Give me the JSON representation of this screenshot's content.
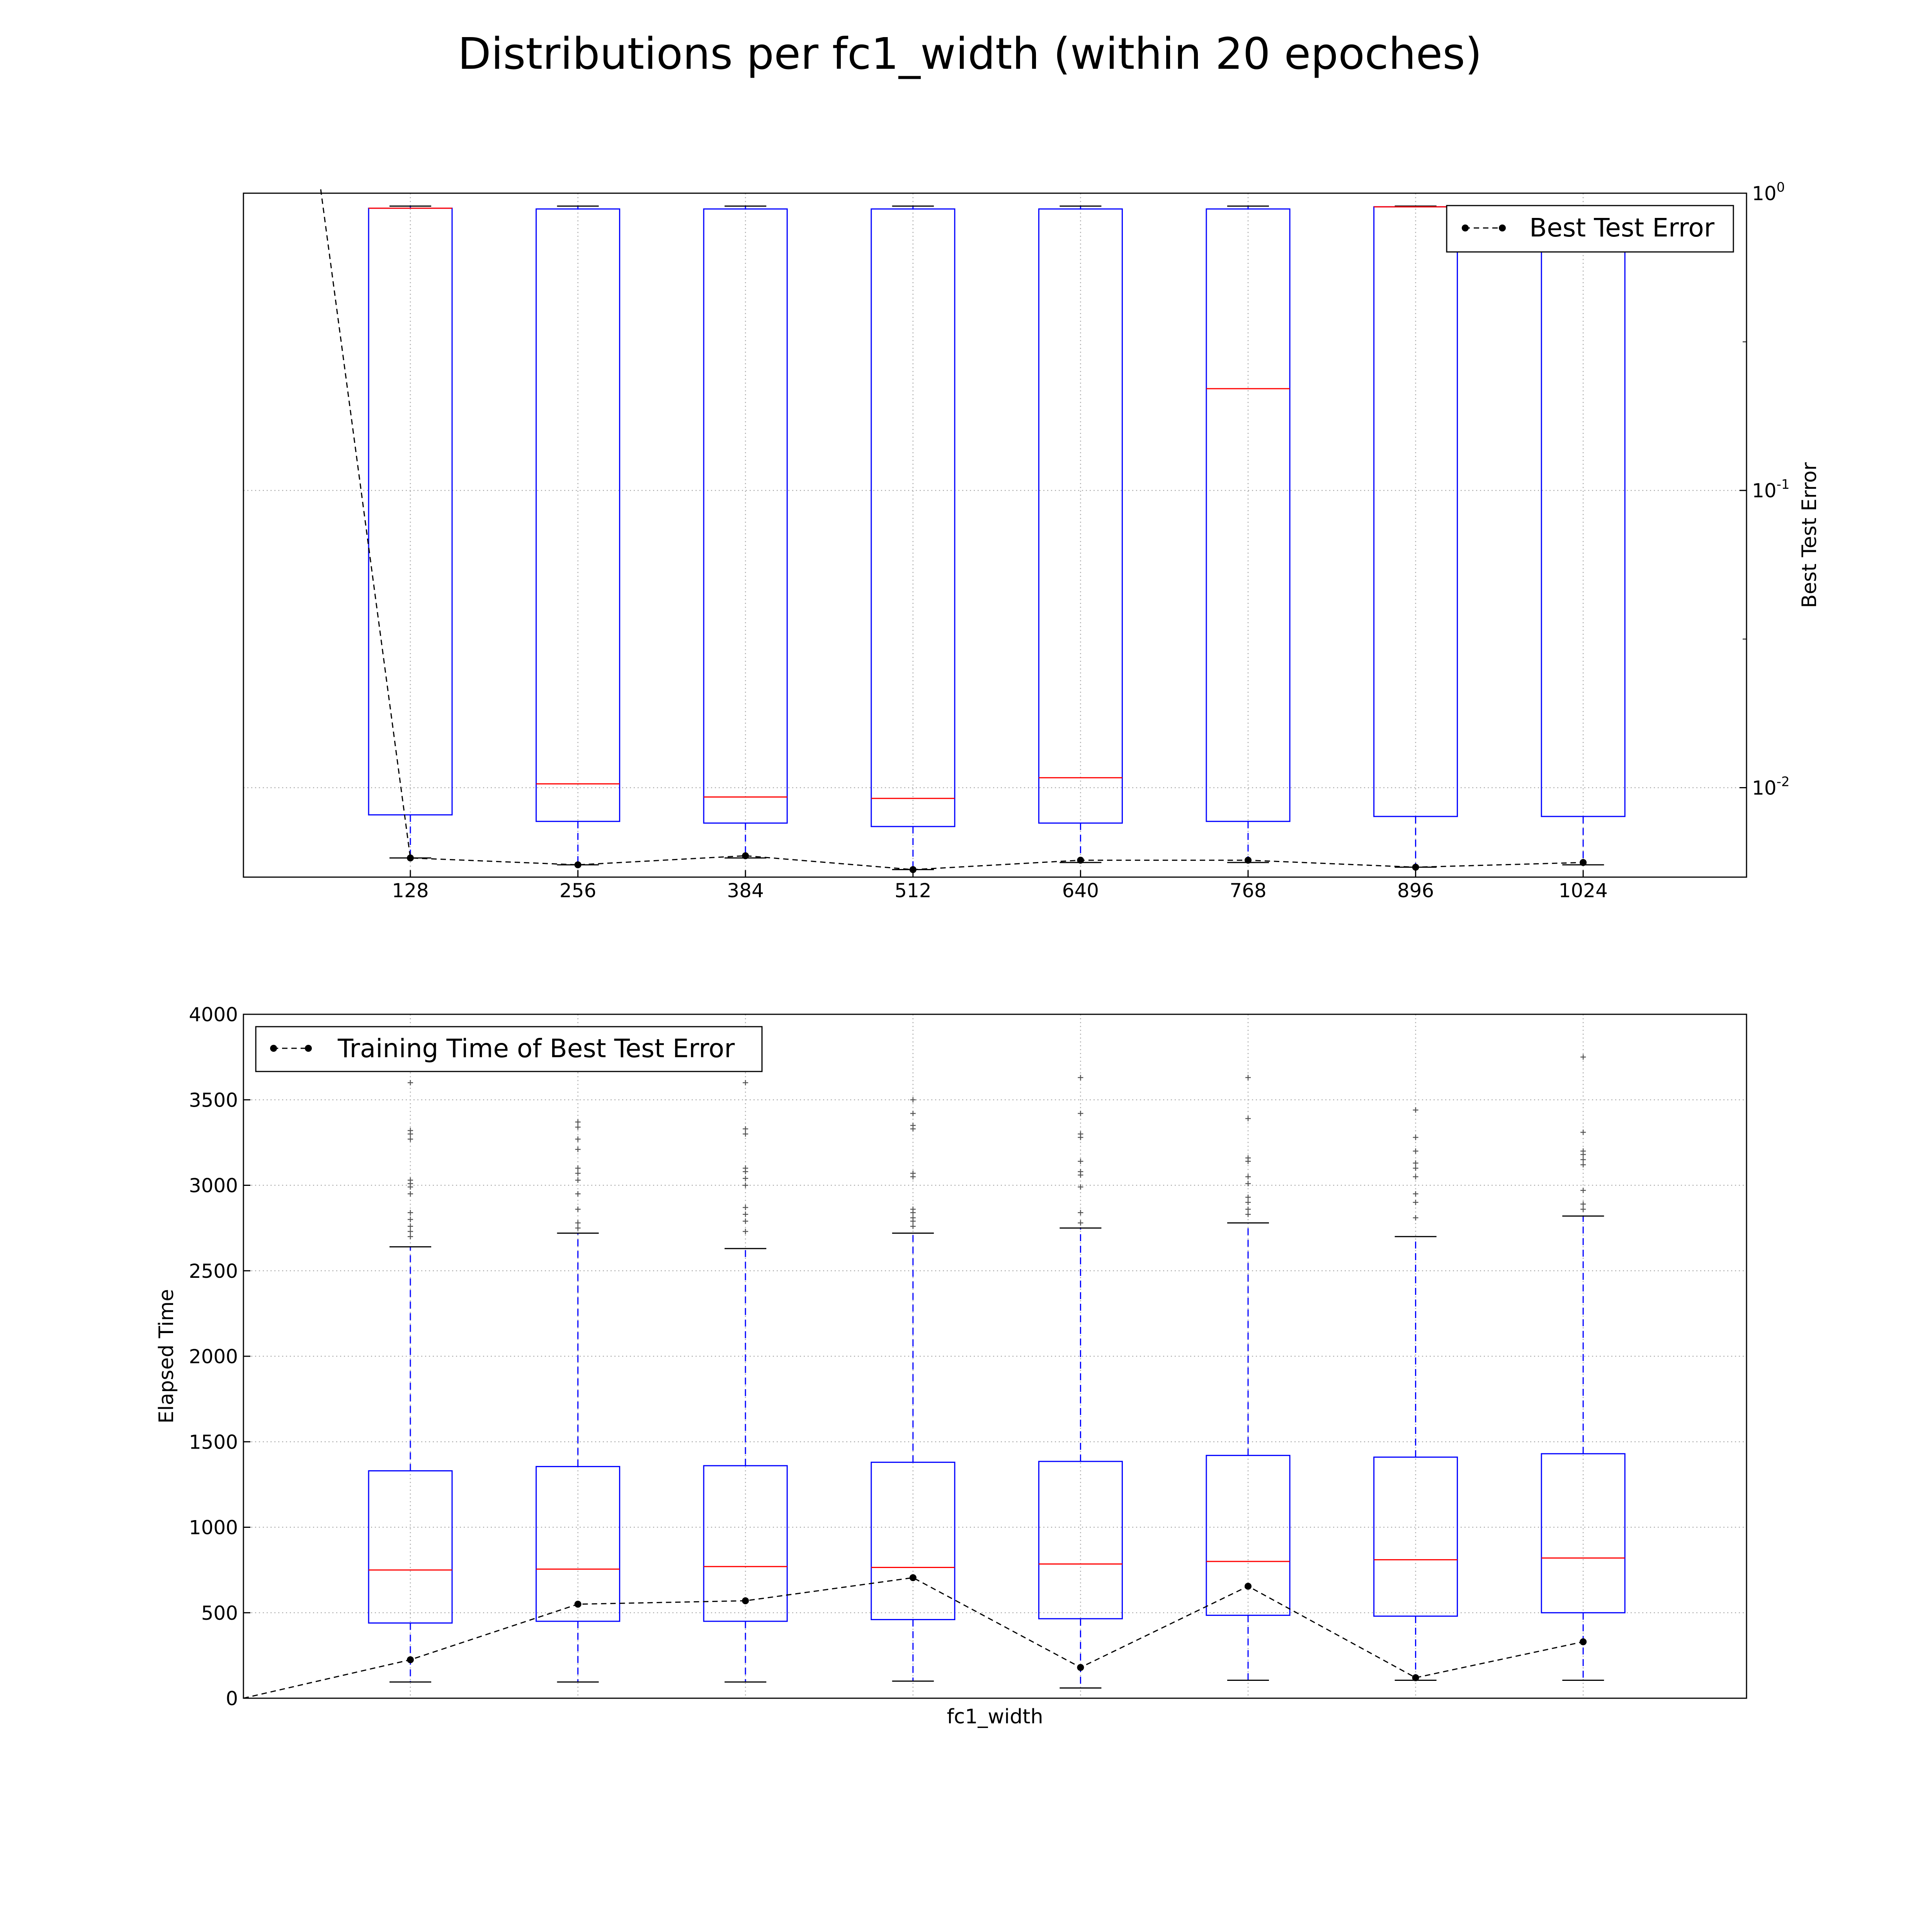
{
  "figure_title": "Distributions per fc1_width (within 20 epoches)",
  "colors": {
    "box": "#0000ff",
    "median": "#ff0000",
    "line": "#000000",
    "grid": "#b0b0b0",
    "flier": "#555555"
  },
  "chart_data": [
    {
      "type": "box",
      "name": "top",
      "categories": [
        "128",
        "256",
        "384",
        "512",
        "640",
        "768",
        "896",
        "1024"
      ],
      "yscale": "log",
      "ylim": [
        0.005,
        1.0
      ],
      "ylabel": "Best Test Error",
      "ylabel_position": "right",
      "yticks": [
        0.01,
        0.1,
        1.0
      ],
      "ytick_labels": [
        {
          "base": "10",
          "exp": "-2"
        },
        {
          "base": "10",
          "exp": "-1"
        },
        {
          "base": "10",
          "exp": "0"
        }
      ],
      "grid": true,
      "legend": {
        "label": "Best Test Error",
        "placement": "top-right"
      },
      "boxes": [
        {
          "q1": 0.0081,
          "median": 0.89,
          "q3": 0.89,
          "whisker_low": 0.0058,
          "whisker_high": 0.905
        },
        {
          "q1": 0.0077,
          "median": 0.0103,
          "q3": 0.885,
          "whisker_low": 0.0055,
          "whisker_high": 0.905
        },
        {
          "q1": 0.0076,
          "median": 0.0093,
          "q3": 0.885,
          "whisker_low": 0.0058,
          "whisker_high": 0.905
        },
        {
          "q1": 0.0074,
          "median": 0.0092,
          "q3": 0.885,
          "whisker_low": 0.0053,
          "whisker_high": 0.905
        },
        {
          "q1": 0.0076,
          "median": 0.0108,
          "q3": 0.885,
          "whisker_low": 0.0056,
          "whisker_high": 0.905
        },
        {
          "q1": 0.0077,
          "median": 0.22,
          "q3": 0.885,
          "whisker_low": 0.0056,
          "whisker_high": 0.905
        },
        {
          "q1": 0.008,
          "median": 0.9,
          "q3": 0.9,
          "whisker_low": 0.0054,
          "whisker_high": 0.905
        },
        {
          "q1": 0.008,
          "median": 0.885,
          "q3": 0.885,
          "whisker_low": 0.0055,
          "whisker_high": 0.905
        }
      ],
      "line": {
        "name": "Best Test Error",
        "start": {
          "pos": 0.47,
          "value": 1.0
        },
        "values": [
          0.0058,
          0.0055,
          0.0059,
          0.0053,
          0.0057,
          0.0057,
          0.0054,
          0.0056
        ]
      }
    },
    {
      "type": "box",
      "name": "bottom",
      "categories": [
        "128",
        "256",
        "384",
        "512",
        "640",
        "768",
        "896",
        "1024"
      ],
      "yscale": "linear",
      "ylim": [
        0,
        4000
      ],
      "yticks": [
        0,
        500,
        1000,
        1500,
        2000,
        2500,
        3000,
        3500,
        4000
      ],
      "ylabel": "Elapsed Time",
      "xlabel": "fc1_width",
      "grid": true,
      "legend": {
        "label": "Training Time of Best Test Error",
        "placement": "top-left"
      },
      "boxes": [
        {
          "q1": 440,
          "median": 750,
          "q3": 1330,
          "whisker_low": 95,
          "whisker_high": 2640,
          "fliers": [
            2700,
            2730,
            2760,
            2800,
            2840,
            2950,
            2990,
            3010,
            3030,
            3270,
            3300,
            3320,
            3600
          ]
        },
        {
          "q1": 450,
          "median": 755,
          "q3": 1355,
          "whisker_low": 95,
          "whisker_high": 2720,
          "fliers": [
            2750,
            2780,
            2860,
            2950,
            3030,
            3070,
            3100,
            3210,
            3270,
            3340,
            3370
          ]
        },
        {
          "q1": 450,
          "median": 770,
          "q3": 1360,
          "whisker_low": 95,
          "whisker_high": 2630,
          "fliers": [
            2730,
            2790,
            2830,
            2870,
            3000,
            3040,
            3080,
            3100,
            3300,
            3330,
            3600
          ]
        },
        {
          "q1": 460,
          "median": 765,
          "q3": 1380,
          "whisker_low": 100,
          "whisker_high": 2720,
          "fliers": [
            2760,
            2790,
            2810,
            2840,
            2860,
            3050,
            3070,
            3330,
            3350,
            3420,
            3500
          ]
        },
        {
          "q1": 465,
          "median": 785,
          "q3": 1385,
          "whisker_low": 60,
          "whisker_high": 2750,
          "fliers": [
            2780,
            2840,
            2990,
            3060,
            3080,
            3140,
            3280,
            3300,
            3420,
            3630
          ]
        },
        {
          "q1": 485,
          "median": 800,
          "q3": 1420,
          "whisker_low": 105,
          "whisker_high": 2780,
          "fliers": [
            2830,
            2860,
            2900,
            2930,
            3010,
            3050,
            3140,
            3160,
            3390,
            3630
          ]
        },
        {
          "q1": 480,
          "median": 810,
          "q3": 1410,
          "whisker_low": 105,
          "whisker_high": 2700,
          "fliers": [
            2810,
            2900,
            2950,
            3050,
            3100,
            3130,
            3200,
            3280,
            3440
          ]
        },
        {
          "q1": 500,
          "median": 820,
          "q3": 1430,
          "whisker_low": 105,
          "whisker_high": 2820,
          "fliers": [
            2860,
            2890,
            2970,
            3120,
            3150,
            3180,
            3200,
            3310,
            3750
          ]
        }
      ],
      "line": {
        "name": "Training Time of Best Test Error",
        "start": {
          "pos": 0,
          "value": 0
        },
        "values": [
          225,
          550,
          570,
          705,
          180,
          655,
          120,
          330
        ]
      }
    }
  ]
}
